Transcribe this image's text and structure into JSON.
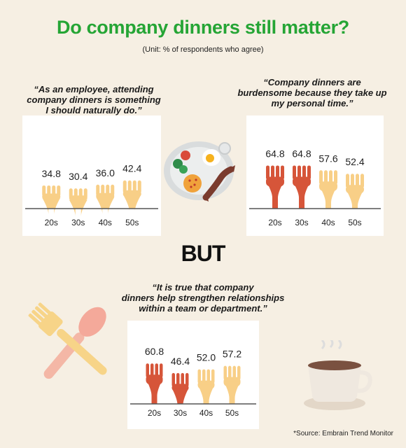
{
  "title": "Do company dinners still matter?",
  "subtitle": "(Unit: % of respondents who agree)",
  "but_label": "BUT",
  "source": "*Source: Embrain Trend Monitor",
  "colors": {
    "title_green": "#25a535",
    "fork_light": "#f8cf87",
    "fork_dark": "#d65539",
    "background": "#f6efe3"
  },
  "icons": [
    "dinner-plate-icon",
    "spoon-fork-icon",
    "coffee-cup-icon",
    "fork-icon"
  ],
  "chart_data": [
    {
      "type": "bar",
      "title": "“As an employee, attending company dinners is something I should naturally do.”",
      "title_lines": [
        "“As an employee, attending",
        "company dinners is something",
        "I should naturally do.”"
      ],
      "categories": [
        "20s",
        "30s",
        "40s",
        "50s"
      ],
      "values": [
        34.8,
        30.4,
        36.0,
        42.4
      ],
      "labels": [
        "34.8",
        "30.4",
        "36.0",
        "42.4"
      ],
      "bar_colors": [
        "#f8cf87",
        "#f8cf87",
        "#f8cf87",
        "#f8cf87"
      ],
      "ylim": [
        0,
        100
      ]
    },
    {
      "type": "bar",
      "title": "“Company dinners are burdensome because they take up my personal time.”",
      "title_lines": [
        "“Company dinners are",
        "burdensome because they take up",
        "my personal time.”"
      ],
      "categories": [
        "20s",
        "30s",
        "40s",
        "50s"
      ],
      "values": [
        64.8,
        64.8,
        57.6,
        52.4
      ],
      "labels": [
        "64.8",
        "64.8",
        "57.6",
        "52.4"
      ],
      "bar_colors": [
        "#d65539",
        "#d65539",
        "#f8cf87",
        "#f8cf87"
      ],
      "ylim": [
        0,
        100
      ]
    },
    {
      "type": "bar",
      "title": "“It is true that company dinners help strengthen relationships within a team or department.”",
      "title_lines": [
        "“It is true that company",
        "dinners help strengthen relationships",
        "within a team or department.”"
      ],
      "categories": [
        "20s",
        "30s",
        "40s",
        "50s"
      ],
      "values": [
        60.8,
        46.4,
        52.0,
        57.2
      ],
      "labels": [
        "60.8",
        "46.4",
        "52.0",
        "57.2"
      ],
      "bar_colors": [
        "#d65539",
        "#d65539",
        "#f8cf87",
        "#f8cf87"
      ],
      "ylim": [
        0,
        100
      ]
    }
  ]
}
